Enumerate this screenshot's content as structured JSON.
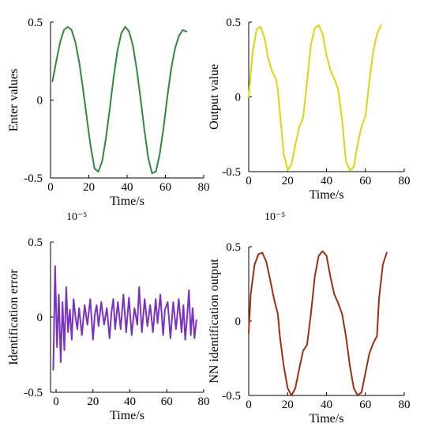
{
  "chart_data": [
    {
      "type": "line",
      "xlabel": "Time/s",
      "ylabel": "Enter values",
      "xlim": [
        0,
        80
      ],
      "ylim": [
        -0.5,
        0.5
      ],
      "xticks": [
        "0",
        "20",
        "40",
        "60",
        "80"
      ],
      "yticks": [
        "-0.5",
        "0",
        "0.5"
      ],
      "grid": false,
      "color": "#2e8b3a",
      "series": [
        {
          "x": [
            1,
            3,
            5,
            7,
            9,
            11,
            13,
            15,
            17,
            19,
            21,
            23,
            25,
            27,
            29,
            31,
            33,
            35,
            37,
            39,
            41,
            43,
            45,
            47,
            49,
            51,
            53,
            55,
            57,
            59,
            61,
            63,
            65,
            67,
            69,
            71
          ],
          "values": [
            0.12,
            0.25,
            0.37,
            0.45,
            0.47,
            0.45,
            0.37,
            0.24,
            0.07,
            -0.12,
            -0.3,
            -0.44,
            -0.46,
            -0.39,
            -0.24,
            -0.05,
            0.15,
            0.32,
            0.43,
            0.47,
            0.44,
            0.35,
            0.2,
            0.01,
            -0.19,
            -0.37,
            -0.47,
            -0.46,
            -0.35,
            -0.18,
            0.02,
            0.2,
            0.33,
            0.41,
            0.45,
            0.44
          ]
        }
      ]
    },
    {
      "type": "line",
      "xlabel": "Time/s",
      "ylabel": "Output value",
      "xlim": [
        0,
        80
      ],
      "ylim": [
        -0.5,
        0.5
      ],
      "xticks": [
        "0",
        "20",
        "40",
        "60",
        "80"
      ],
      "yticks": [
        "-0.5",
        "0",
        "0.5"
      ],
      "grid": false,
      "color": "#e2d40c",
      "series": [
        {
          "x": [
            0,
            2,
            4,
            6,
            8,
            10,
            12,
            14,
            15,
            16,
            18,
            20,
            22,
            24,
            26,
            28,
            30,
            32,
            34,
            36,
            38,
            40,
            42,
            44,
            46,
            47,
            48,
            50,
            52,
            54,
            56,
            58,
            60,
            62,
            64,
            66,
            68
          ],
          "values": [
            0.0,
            0.3,
            0.45,
            0.47,
            0.4,
            0.26,
            0.17,
            0.12,
            0.05,
            -0.1,
            -0.38,
            -0.49,
            -0.45,
            -0.32,
            -0.2,
            -0.14,
            0.1,
            0.35,
            0.46,
            0.48,
            0.42,
            0.28,
            0.18,
            0.12,
            0.05,
            -0.05,
            -0.15,
            -0.43,
            -0.49,
            -0.47,
            -0.32,
            -0.2,
            -0.13,
            0.1,
            0.3,
            0.42,
            0.48
          ]
        }
      ]
    },
    {
      "type": "line",
      "xlabel": "Time/s",
      "ylabel": "Identification error",
      "exponent_label": "10⁻⁵",
      "xlim": [
        -3,
        80
      ],
      "ylim": [
        -0.5,
        0.5
      ],
      "xticks": [
        "0",
        "20",
        "40",
        "60",
        "80"
      ],
      "yticks": [
        "-0.5",
        "0",
        "0.5"
      ],
      "grid": false,
      "color": "#7a33c0",
      "series": [
        {
          "x": [
            -1.5,
            -0.5,
            0.5,
            1.5,
            2.5,
            3.5,
            4.5,
            5.5,
            6.5,
            7.5,
            8.5,
            9.5,
            10.5,
            11.5,
            12.5,
            14,
            15.5,
            17,
            18.5,
            20,
            21,
            22,
            23,
            24.5,
            26,
            27.5,
            29,
            30,
            31,
            32,
            33.5,
            35,
            36.5,
            38,
            39.5,
            41,
            42.5,
            44,
            45,
            46.5,
            48,
            49.5,
            51,
            52.5,
            54,
            55,
            56.5,
            58,
            59,
            60.5,
            62,
            63.5,
            65,
            66.5,
            68,
            69,
            70,
            71,
            72,
            73,
            74,
            75,
            76
          ],
          "values": [
            -0.35,
            0.34,
            -0.2,
            0.15,
            -0.3,
            0.1,
            -0.22,
            0.2,
            -0.1,
            0.05,
            -0.15,
            0.12,
            0.0,
            -0.08,
            0.06,
            -0.12,
            0.08,
            -0.05,
            0.12,
            -0.15,
            0.02,
            0.08,
            -0.06,
            0.1,
            -0.05,
            0.06,
            -0.14,
            0.03,
            0.12,
            -0.08,
            0.1,
            -0.08,
            0.15,
            -0.1,
            0.13,
            -0.12,
            0.06,
            -0.05,
            0.2,
            -0.1,
            0.12,
            -0.06,
            0.08,
            -0.1,
            0.12,
            -0.04,
            0.15,
            -0.12,
            0.05,
            0.1,
            -0.14,
            0.1,
            -0.08,
            0.12,
            -0.1,
            0.08,
            -0.15,
            0.0,
            0.18,
            -0.12,
            0.06,
            -0.14,
            -0.02
          ]
        }
      ]
    },
    {
      "type": "line",
      "xlabel": "Time/s",
      "ylabel": "NN identification output",
      "exponent_label": "10⁻⁵",
      "xlim": [
        0,
        80
      ],
      "ylim": [
        -0.5,
        0.5
      ],
      "xticks": [
        "0",
        "20",
        "40",
        "60",
        "80"
      ],
      "yticks": [
        "-0.5",
        "0",
        "0.5"
      ],
      "grid": false,
      "color": "#9e3010",
      "series": [
        {
          "x": [
            0,
            1,
            3,
            5,
            7,
            9,
            11,
            13,
            15,
            16,
            18,
            20,
            22,
            24,
            26,
            28,
            30,
            32,
            34,
            36,
            38,
            40,
            42,
            44,
            46,
            48,
            50,
            52,
            54,
            56,
            58,
            60,
            62,
            64,
            66,
            67,
            69,
            71
          ],
          "values": [
            -0.08,
            0.18,
            0.38,
            0.45,
            0.46,
            0.4,
            0.28,
            0.15,
            0.05,
            -0.1,
            -0.3,
            -0.45,
            -0.5,
            -0.45,
            -0.32,
            -0.2,
            -0.16,
            0.05,
            0.3,
            0.44,
            0.47,
            0.44,
            0.3,
            0.18,
            0.12,
            0.05,
            -0.1,
            -0.3,
            -0.45,
            -0.5,
            -0.48,
            -0.35,
            -0.22,
            -0.15,
            -0.1,
            0.15,
            0.38,
            0.46
          ]
        }
      ]
    }
  ]
}
